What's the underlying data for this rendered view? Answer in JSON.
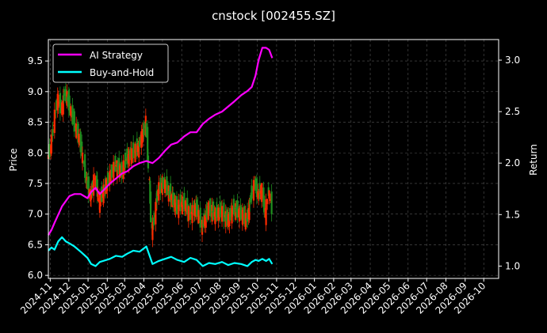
{
  "chart_data": {
    "type": "line",
    "title": "cnstock [002455.SZ]",
    "ylabel_left": "Price",
    "ylabel_right": "Return",
    "ylim_left": [
      5.95,
      9.85
    ],
    "ylim_right": [
      0.88,
      3.2
    ],
    "left_ticks": [
      6.0,
      6.5,
      7.0,
      7.5,
      8.0,
      8.5,
      9.0,
      9.5
    ],
    "right_ticks": [
      1.0,
      1.5,
      2.0,
      2.5,
      3.0
    ],
    "x_tick_labels": [
      "2024-11",
      "2024-12",
      "2025-01",
      "2025-02",
      "2025-03",
      "2025-04",
      "2025-05",
      "2025-06",
      "2025-07",
      "2025-08",
      "2025-09",
      "2025-10",
      "2025-11",
      "2025-12",
      "2026-01",
      "2026-02",
      "2026-03",
      "2026-04",
      "2026-05",
      "2026-06",
      "2026-07",
      "2026-08",
      "2026-09",
      "2026-10"
    ],
    "x_range": [
      "2024-10-29",
      "2026-10-25"
    ],
    "grid": true,
    "legend": {
      "placement": "top-left",
      "entries": [
        "AI Strategy",
        "Buy-and-Hold"
      ]
    },
    "colors": {
      "ai_strategy": "#ff00ff",
      "buy_and_hold": "#00ffff",
      "candle_up": "#ff2a00",
      "candle_down": "#1f8f1f",
      "background": "#000000"
    },
    "series": [
      {
        "name": "AI Strategy",
        "axis": "right",
        "x": [
          "2024-10-29",
          "2024-11-03",
          "2024-11-08",
          "2024-11-14",
          "2024-11-20",
          "2024-11-26",
          "2024-12-02",
          "2024-12-10",
          "2024-12-20",
          "2024-12-31",
          "2025-01-06",
          "2025-01-13",
          "2025-01-20",
          "2025-02-05",
          "2025-02-15",
          "2025-02-25",
          "2025-03-05",
          "2025-03-15",
          "2025-03-25",
          "2025-04-05",
          "2025-04-15",
          "2025-04-25",
          "2025-05-05",
          "2025-05-15",
          "2025-05-25",
          "2025-06-05",
          "2025-06-15",
          "2025-06-25",
          "2025-07-05",
          "2025-07-15",
          "2025-07-25",
          "2025-08-05",
          "2025-08-15",
          "2025-08-25",
          "2025-09-05",
          "2025-09-15",
          "2025-09-22",
          "2025-09-28",
          "2025-10-03",
          "2025-10-09",
          "2025-10-15",
          "2025-10-20",
          "2025-10-25"
        ],
        "values": [
          1.3,
          1.35,
          1.42,
          1.5,
          1.58,
          1.63,
          1.68,
          1.7,
          1.7,
          1.66,
          1.72,
          1.76,
          1.7,
          1.8,
          1.85,
          1.9,
          1.92,
          1.97,
          2.0,
          2.02,
          2.0,
          2.05,
          2.12,
          2.18,
          2.2,
          2.26,
          2.3,
          2.3,
          2.38,
          2.43,
          2.47,
          2.5,
          2.55,
          2.6,
          2.66,
          2.7,
          2.74,
          2.85,
          3.0,
          3.12,
          3.12,
          3.1,
          3.02
        ]
      },
      {
        "name": "Buy-and-Hold",
        "axis": "right",
        "x": [
          "2024-10-29",
          "2024-11-03",
          "2024-11-08",
          "2024-11-14",
          "2024-11-20",
          "2024-11-26",
          "2024-12-02",
          "2024-12-10",
          "2024-12-20",
          "2024-12-31",
          "2025-01-06",
          "2025-01-13",
          "2025-01-20",
          "2025-02-05",
          "2025-02-15",
          "2025-02-25",
          "2025-03-05",
          "2025-03-15",
          "2025-03-25",
          "2025-04-05",
          "2025-04-15",
          "2025-04-25",
          "2025-05-05",
          "2025-05-15",
          "2025-05-25",
          "2025-06-05",
          "2025-06-15",
          "2025-06-25",
          "2025-07-05",
          "2025-07-15",
          "2025-07-25",
          "2025-08-05",
          "2025-08-15",
          "2025-08-25",
          "2025-09-05",
          "2025-09-15",
          "2025-09-22",
          "2025-09-28",
          "2025-10-03",
          "2025-10-09",
          "2025-10-15",
          "2025-10-20",
          "2025-10-25"
        ],
        "values": [
          1.15,
          1.18,
          1.16,
          1.24,
          1.28,
          1.24,
          1.22,
          1.19,
          1.14,
          1.08,
          1.02,
          1.0,
          1.04,
          1.07,
          1.1,
          1.09,
          1.12,
          1.15,
          1.14,
          1.19,
          1.02,
          1.05,
          1.07,
          1.09,
          1.06,
          1.04,
          1.08,
          1.06,
          1.0,
          1.03,
          1.02,
          1.04,
          1.01,
          1.03,
          1.02,
          1.0,
          1.04,
          1.06,
          1.05,
          1.07,
          1.05,
          1.07,
          1.02
        ]
      },
      {
        "name": "Price",
        "axis": "left",
        "x": [
          "2024-10-29",
          "2024-11-03",
          "2024-11-08",
          "2024-11-14",
          "2024-11-20",
          "2024-11-26",
          "2024-12-02",
          "2024-12-10",
          "2024-12-20",
          "2024-12-31",
          "2025-01-06",
          "2025-01-13",
          "2025-01-20",
          "2025-02-05",
          "2025-02-15",
          "2025-02-25",
          "2025-03-05",
          "2025-03-15",
          "2025-03-25",
          "2025-04-05",
          "2025-04-15",
          "2025-04-25",
          "2025-05-05",
          "2025-05-15",
          "2025-05-25",
          "2025-06-05",
          "2025-06-15",
          "2025-06-25",
          "2025-07-05",
          "2025-07-15",
          "2025-07-25",
          "2025-08-05",
          "2025-08-15",
          "2025-08-25",
          "2025-09-05",
          "2025-09-15",
          "2025-09-22",
          "2025-09-28",
          "2025-10-03",
          "2025-10-09",
          "2025-10-15",
          "2025-10-20",
          "2025-10-25"
        ],
        "values": [
          7.9,
          8.1,
          8.5,
          8.9,
          8.7,
          9.0,
          8.8,
          8.5,
          8.2,
          7.5,
          7.3,
          7.6,
          7.2,
          7.6,
          7.8,
          7.7,
          7.9,
          8.0,
          8.1,
          8.5,
          6.7,
          7.4,
          7.5,
          7.3,
          7.1,
          7.2,
          7.0,
          7.1,
          6.8,
          7.1,
          7.0,
          7.05,
          6.9,
          7.1,
          7.0,
          6.9,
          7.3,
          7.5,
          7.3,
          7.4,
          7.0,
          7.4,
          7.1
        ]
      }
    ]
  }
}
